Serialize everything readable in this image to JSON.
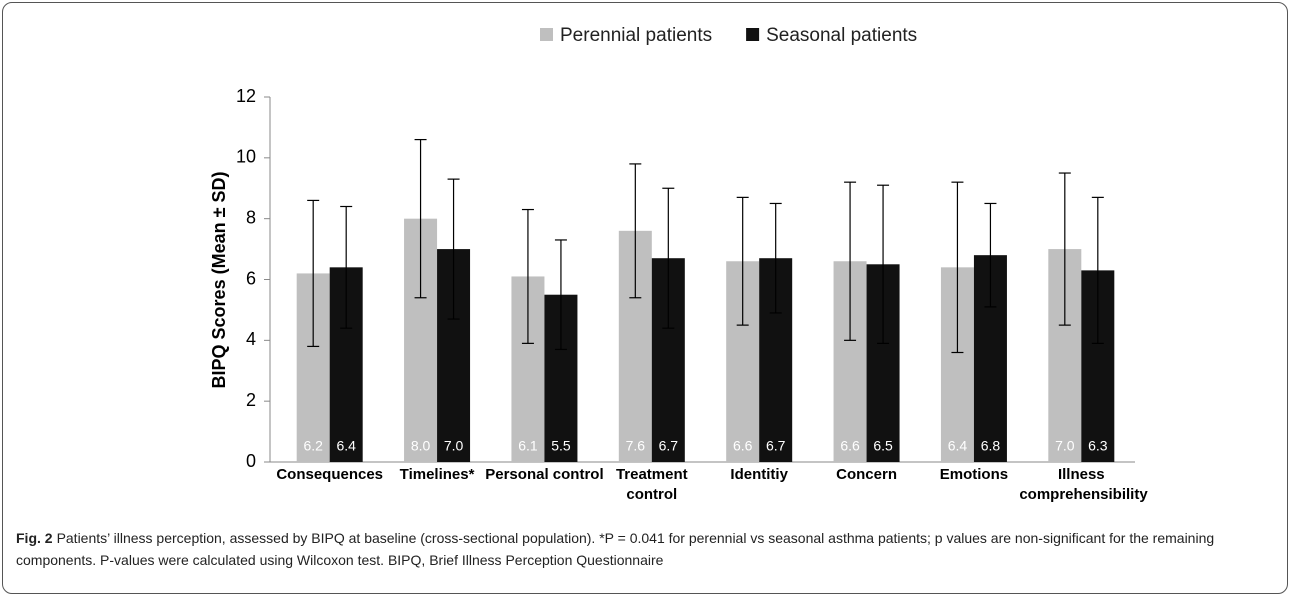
{
  "chart_data": {
    "type": "bar",
    "y_label": "BIPQ Scores (Mean ± SD)",
    "categories": [
      "Consequences",
      "Timelines*",
      "Personal control",
      "Treatment control",
      "Identitiy",
      "Concern",
      "Emotions",
      "Illness comprehensibility"
    ],
    "series": [
      {
        "name": "Perennial patients",
        "color": "#bfbfbf",
        "values": [
          6.2,
          8.0,
          6.1,
          7.6,
          6.6,
          6.6,
          6.4,
          7.0
        ],
        "value_labels": [
          "6.2",
          "8.0",
          "6.1",
          "7.6",
          "6.6",
          "6.6",
          "6.4",
          "7.0"
        ],
        "errors": [
          2.4,
          2.6,
          2.2,
          2.2,
          2.1,
          2.6,
          2.8,
          2.5
        ]
      },
      {
        "name": "Seasonal patients",
        "color": "#111111",
        "values": [
          6.4,
          7.0,
          5.5,
          6.7,
          6.7,
          6.5,
          6.8,
          6.3
        ],
        "value_labels": [
          "6.4",
          "7.0",
          "5.5",
          "6.7",
          "6.7",
          "6.5",
          "6.8",
          "6.3"
        ],
        "errors": [
          2.0,
          2.3,
          1.8,
          2.3,
          1.8,
          2.6,
          1.7,
          2.4
        ]
      }
    ],
    "ylim": [
      0,
      12
    ],
    "yticks": [
      0,
      2,
      4,
      6,
      8,
      10,
      12
    ],
    "grid": false,
    "legend": "top"
  },
  "caption": {
    "label": "Fig. 2",
    "text": "Patients’ illness perception, assessed by BIPQ at baseline (cross-sectional population). *P = 0.041 for perennial vs seasonal asthma patients; p values are non-significant for the remaining components. P-values were calculated using Wilcoxon test. BIPQ, Brief Illness Perception Questionnaire"
  }
}
